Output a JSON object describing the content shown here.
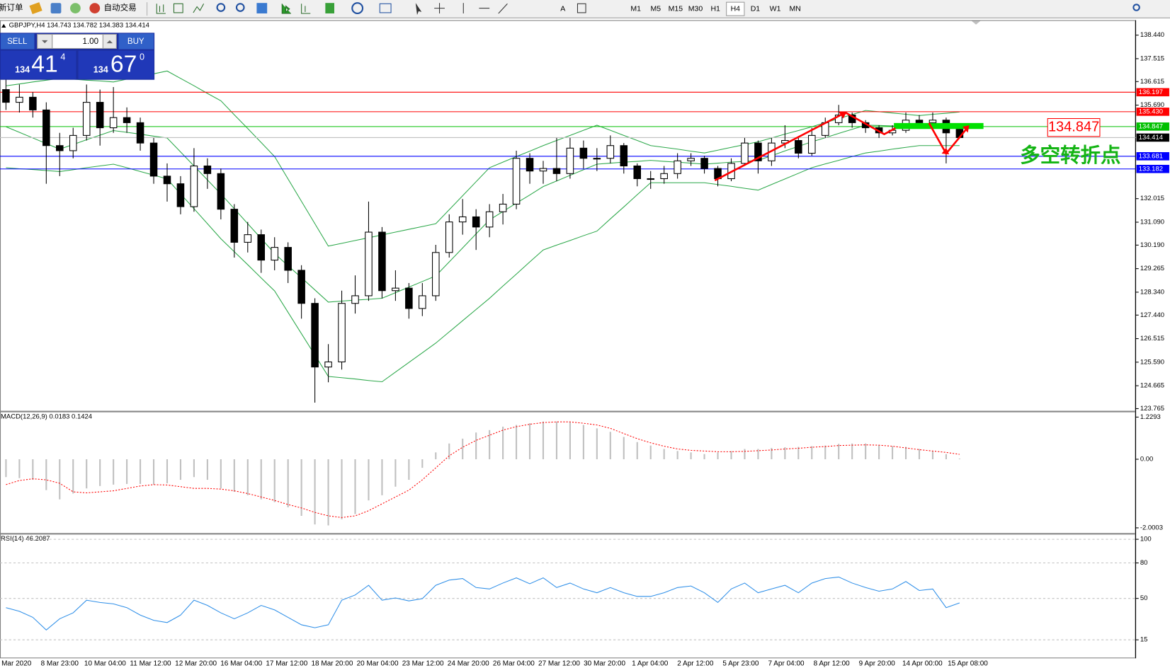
{
  "toolbar": {
    "new_order": "新订单",
    "auto_trading": "自动交易",
    "timeframes": [
      "M1",
      "M5",
      "M15",
      "M30",
      "H1",
      "H4",
      "D1",
      "W1",
      "MN"
    ],
    "active_timeframe": "H4"
  },
  "trade_panel": {
    "sell": "SELL",
    "buy": "BUY",
    "lots": "1.00",
    "sell_price": {
      "big": "134",
      "main": "41",
      "sup": "4"
    },
    "buy_price": {
      "big": "134",
      "main": "67",
      "sup": "0"
    }
  },
  "time_axis": {
    "labels": [
      "Mar 2020",
      "8 Mar 23:00",
      "10 Mar 04:00",
      "11 Mar 12:00",
      "12 Mar 20:00",
      "16 Mar 04:00",
      "17 Mar 12:00",
      "18 Mar 20:00",
      "20 Mar 04:00",
      "23 Mar 12:00",
      "24 Mar 20:00",
      "26 Mar 04:00",
      "27 Mar 12:00",
      "30 Mar 20:00",
      "1 Apr 04:00",
      "2 Apr 12:00",
      "5 Apr 23:00",
      "7 Apr 04:00",
      "8 Apr 12:00",
      "9 Apr 20:00",
      "14 Apr 00:00",
      "15 Apr 08:00"
    ]
  },
  "chart_data": [
    {
      "type": "candlestick",
      "title": "GBPJPY,H4  134.743 134.782 134.383 134.414",
      "up_color": "#ffffff",
      "down_color": "#000000",
      "ylim": [
        123.68,
        139.0
      ],
      "grid": false,
      "yticks": [
        {
          "value": 138.44,
          "label": "138.440"
        },
        137.515,
        136.615,
        {
          "value": 135.69,
          "label": "135.690"
        },
        132.015,
        {
          "value": 131.09,
          "label": "131.090"
        },
        {
          "value": 130.19,
          "label": "130.190"
        },
        129.265,
        {
          "value": 128.34,
          "label": "128.340"
        },
        {
          "value": 127.44,
          "label": "127.440"
        },
        126.515,
        {
          "value": 125.59,
          "label": "125.590"
        },
        124.665,
        123.765
      ],
      "open": [
        136.3,
        135.8,
        136.0,
        135.5,
        134.1,
        133.9,
        134.5,
        135.8,
        134.8,
        135.2,
        135.0,
        134.2,
        132.9,
        132.6,
        131.7,
        133.3,
        133.0,
        131.6,
        130.3,
        130.6,
        129.6,
        130.1,
        129.2,
        127.9,
        125.4,
        125.6,
        127.9,
        128.2,
        130.7,
        128.4,
        128.5,
        127.7,
        128.2,
        129.9,
        131.1,
        131.3,
        130.9,
        131.5,
        131.8,
        133.6,
        133.1,
        133.2,
        133.0,
        134.0,
        133.6,
        133.6,
        134.1,
        133.3,
        132.8,
        132.8,
        133.0,
        133.5,
        133.6,
        133.2,
        132.8,
        133.4,
        134.2,
        133.5,
        134.2,
        134.3,
        133.8,
        134.5,
        135.0,
        135.3,
        135.0,
        134.8,
        134.6,
        134.7,
        135.1,
        135.0,
        135.1,
        134.743
      ],
      "high": [
        136.8,
        136.5,
        136.2,
        135.8,
        134.6,
        134.8,
        136.5,
        136.3,
        136.4,
        135.6,
        135.2,
        134.4,
        133.4,
        132.9,
        134.0,
        133.6,
        133.2,
        131.8,
        131.1,
        130.8,
        130.5,
        130.3,
        129.4,
        128.1,
        126.3,
        128.4,
        129.0,
        131.9,
        130.9,
        129.2,
        128.7,
        128.7,
        130.2,
        131.4,
        132.0,
        131.6,
        131.8,
        132.2,
        133.9,
        133.8,
        133.5,
        134.4,
        134.4,
        134.3,
        134.0,
        134.5,
        134.2,
        133.4,
        133.1,
        133.3,
        133.8,
        133.8,
        133.7,
        133.3,
        133.6,
        134.4,
        134.3,
        134.4,
        134.9,
        134.4,
        134.8,
        135.2,
        135.7,
        135.4,
        135.1,
        134.9,
        134.9,
        135.4,
        135.3,
        135.4,
        135.2,
        134.782
      ],
      "low": [
        135.5,
        135.4,
        135.2,
        132.6,
        132.9,
        133.6,
        134.3,
        134.1,
        134.6,
        134.6,
        133.9,
        132.6,
        131.9,
        131.4,
        131.5,
        132.4,
        131.2,
        129.7,
        129.9,
        129.1,
        129.2,
        128.7,
        127.3,
        124.0,
        124.8,
        125.3,
        127.5,
        128.0,
        128.1,
        128.0,
        127.3,
        127.4,
        128.0,
        129.7,
        130.6,
        130.0,
        130.5,
        131.0,
        131.6,
        132.6,
        132.6,
        132.7,
        132.8,
        133.2,
        133.1,
        133.4,
        133.0,
        132.5,
        132.4,
        132.6,
        132.8,
        133.3,
        133.0,
        132.5,
        132.7,
        133.3,
        133.0,
        133.3,
        134.0,
        133.6,
        133.7,
        134.4,
        134.9,
        134.8,
        134.6,
        134.4,
        134.5,
        134.6,
        134.8,
        134.9,
        133.4,
        134.383
      ],
      "close": [
        135.8,
        136.0,
        135.5,
        134.1,
        133.9,
        134.5,
        135.8,
        134.8,
        135.2,
        135.0,
        134.2,
        132.9,
        132.6,
        131.7,
        133.3,
        133.0,
        131.6,
        130.3,
        130.6,
        129.6,
        130.1,
        129.2,
        127.9,
        125.4,
        125.6,
        127.9,
        128.2,
        130.7,
        128.4,
        128.5,
        127.7,
        128.2,
        129.9,
        131.1,
        131.3,
        130.9,
        131.5,
        131.8,
        133.6,
        133.1,
        133.2,
        133.0,
        134.0,
        133.6,
        133.6,
        134.1,
        133.3,
        132.8,
        132.8,
        133.0,
        133.5,
        133.6,
        133.2,
        132.8,
        133.4,
        134.2,
        133.5,
        134.2,
        134.3,
        133.8,
        134.5,
        135.0,
        135.3,
        135.0,
        134.8,
        134.6,
        134.7,
        135.1,
        135.0,
        135.1,
        134.6,
        134.414
      ],
      "bands": {
        "color": "#2ca84a",
        "upper": [
          136.45,
          136.52,
          136.6,
          136.67,
          136.74,
          136.71,
          136.67,
          136.64,
          136.6,
          136.71,
          136.82,
          136.92,
          137.03,
          136.74,
          136.45,
          136.15,
          135.86,
          135.31,
          134.77,
          134.22,
          133.67,
          132.79,
          131.91,
          131.03,
          130.15,
          130.26,
          130.37,
          130.48,
          130.59,
          130.7,
          130.81,
          130.92,
          131.03,
          131.58,
          132.13,
          132.68,
          133.23,
          133.45,
          133.67,
          133.88,
          134.1,
          134.3,
          134.5,
          134.7,
          134.9,
          134.7,
          134.5,
          134.3,
          134.1,
          134.03,
          133.96,
          133.88,
          133.81,
          133.92,
          134.03,
          134.14,
          134.25,
          134.4,
          134.55,
          134.69,
          134.84,
          135.0,
          135.16,
          135.32,
          135.48,
          135.43,
          135.38,
          135.33,
          135.28,
          135.33,
          135.37,
          135.42
        ],
        "middle": [
          134.84,
          134.62,
          134.4,
          134.18,
          133.96,
          134.14,
          134.33,
          134.51,
          134.69,
          134.62,
          134.55,
          134.47,
          134.4,
          133.85,
          133.3,
          132.75,
          132.2,
          131.62,
          131.03,
          130.45,
          129.86,
          129.38,
          128.91,
          128.43,
          127.95,
          127.99,
          128.03,
          128.06,
          128.1,
          128.32,
          128.54,
          128.76,
          128.98,
          129.53,
          130.08,
          130.63,
          131.18,
          131.51,
          131.84,
          132.16,
          132.49,
          132.71,
          132.93,
          133.15,
          133.37,
          133.41,
          133.45,
          133.48,
          133.52,
          133.48,
          133.45,
          133.41,
          133.37,
          133.41,
          133.45,
          133.48,
          133.52,
          133.7,
          133.89,
          134.07,
          134.25,
          134.41,
          134.58,
          134.74,
          134.9,
          134.89,
          134.87,
          134.86,
          134.84,
          134.86,
          134.88,
          134.9
        ],
        "lower": [
          133.23,
          133.19,
          133.16,
          133.12,
          133.08,
          133.15,
          133.23,
          133.3,
          133.37,
          133.23,
          133.08,
          132.94,
          132.79,
          132.2,
          131.62,
          131.03,
          130.44,
          129.93,
          129.42,
          128.9,
          128.39,
          127.55,
          126.71,
          125.87,
          125.03,
          124.98,
          124.93,
          124.87,
          124.82,
          125.2,
          125.58,
          125.96,
          126.34,
          126.78,
          127.22,
          127.66,
          128.1,
          128.58,
          129.05,
          129.53,
          130.0,
          130.19,
          130.37,
          130.56,
          130.74,
          131.22,
          131.69,
          132.17,
          132.64,
          132.64,
          132.64,
          132.64,
          132.64,
          132.57,
          132.5,
          132.42,
          132.35,
          132.57,
          132.79,
          133.01,
          133.23,
          133.38,
          133.52,
          133.67,
          133.81,
          133.88,
          133.96,
          134.03,
          134.1,
          134.1,
          134.1,
          134.1
        ]
      },
      "levels": [
        {
          "value": 136.197,
          "color": "#ff0000"
        },
        {
          "value": 135.43,
          "label": "135.430",
          "color": "#ff0000"
        },
        {
          "value": 134.847,
          "color": "#00c000"
        },
        {
          "value": 134.414,
          "color": "#c0c0c0",
          "box_color": "#000000"
        },
        {
          "value": 133.681,
          "color": "#0000ff"
        },
        {
          "value": 133.182,
          "color": "#0000ff"
        }
      ],
      "annotations": {
        "price_box": "134.847",
        "note": "多空转折点"
      }
    },
    {
      "type": "macd",
      "title": "MACD(12,26,9) 0.0183 0.1424",
      "color": "#c0c0c0",
      "signal_color": "#ff0000",
      "ylim": [
        -2.152,
        1.3696
      ],
      "yticks": [
        1.2293,
        {
          "value": 0,
          "label": "0.00"
        },
        -2.0003
      ],
      "histogram": [
        -0.52,
        -0.55,
        -0.6,
        -0.9,
        -1.17,
        -1.0,
        -0.85,
        -0.78,
        -0.74,
        -0.72,
        -0.72,
        -0.74,
        -0.7,
        -0.6,
        -0.52,
        -0.6,
        -0.85,
        -0.95,
        -1.05,
        -1.17,
        -1.25,
        -1.4,
        -1.65,
        -1.9,
        -1.93,
        -1.75,
        -1.6,
        -1.2,
        -1.05,
        -0.8,
        -0.6,
        -0.25,
        0.2,
        0.46,
        0.6,
        0.78,
        0.85,
        0.95,
        1.0,
        1.05,
        1.1,
        1.1,
        1.08,
        1.0,
        0.9,
        0.8,
        0.65,
        0.5,
        0.4,
        0.3,
        0.24,
        0.2,
        0.15,
        0.2,
        0.24,
        0.3,
        0.3,
        0.33,
        0.35,
        0.36,
        0.38,
        0.4,
        0.45,
        0.46,
        0.46,
        0.42,
        0.38,
        0.36,
        0.3,
        0.25,
        0.15,
        0.0183
      ],
      "signal": [
        -0.74,
        -0.62,
        -0.57,
        -0.6,
        -0.7,
        -0.95,
        -0.98,
        -0.95,
        -0.92,
        -0.85,
        -0.78,
        -0.74,
        -0.75,
        -0.8,
        -0.85,
        -0.85,
        -0.87,
        -0.92,
        -1.0,
        -1.1,
        -1.2,
        -1.32,
        -1.42,
        -1.55,
        -1.65,
        -1.7,
        -1.65,
        -1.5,
        -1.3,
        -1.1,
        -0.9,
        -0.6,
        -0.25,
        0.1,
        0.35,
        0.55,
        0.7,
        0.85,
        0.95,
        1.02,
        1.07,
        1.09,
        1.09,
        1.05,
        1.0,
        0.9,
        0.75,
        0.6,
        0.48,
        0.38,
        0.3,
        0.26,
        0.24,
        0.22,
        0.22,
        0.23,
        0.25,
        0.27,
        0.3,
        0.32,
        0.35,
        0.37,
        0.4,
        0.41,
        0.42,
        0.41,
        0.38,
        0.33,
        0.28,
        0.24,
        0.2,
        0.1424
      ]
    },
    {
      "type": "line",
      "title": "RSI(14) 46.2087",
      "color": "#2f8fe8",
      "ylim": [
        0,
        104
      ],
      "yticks": [
        100,
        80,
        50,
        15
      ],
      "grid": true,
      "values": [
        42.2,
        39.1,
        34.0,
        23.3,
        32.8,
        37.8,
        48.5,
        46.6,
        45.4,
        42.2,
        35.9,
        31.5,
        29.6,
        35.9,
        48.5,
        44.1,
        37.8,
        32.8,
        37.8,
        44.1,
        40.3,
        34.0,
        27.7,
        25.2,
        27.7,
        48.5,
        52.9,
        61.1,
        48.5,
        50.4,
        47.9,
        49.8,
        61.1,
        65.5,
        66.8,
        59.2,
        58.0,
        63.0,
        67.4,
        62.4,
        67.4,
        59.2,
        63.0,
        58.0,
        54.8,
        59.2,
        54.8,
        51.7,
        51.7,
        54.8,
        59.2,
        60.5,
        54.8,
        46.6,
        58.0,
        63.0,
        54.8,
        58.0,
        61.1,
        54.8,
        63.0,
        66.8,
        68.1,
        63.0,
        59.2,
        56.1,
        58.0,
        64.3,
        56.7,
        58.0,
        42.2,
        46.2087
      ]
    }
  ]
}
